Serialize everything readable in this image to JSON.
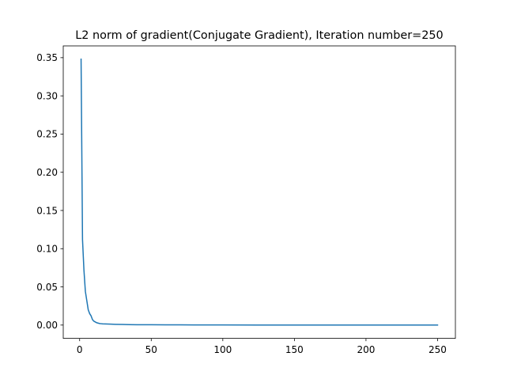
{
  "chart_data": {
    "type": "line",
    "title": "L2 norm of gradient(Conjugate Gradient), Iteration number=250",
    "xlabel": "",
    "ylabel": "",
    "xlim": [
      -11.45,
      262.45
    ],
    "ylim": [
      -0.0174,
      0.3654
    ],
    "x_ticks": [
      0,
      50,
      100,
      150,
      200,
      250
    ],
    "x_tick_labels": [
      "0",
      "50",
      "100",
      "150",
      "200",
      "250"
    ],
    "y_ticks": [
      0.0,
      0.05,
      0.1,
      0.15,
      0.2,
      0.25,
      0.3,
      0.35
    ],
    "y_tick_labels": [
      "0.00",
      "0.05",
      "0.10",
      "0.15",
      "0.20",
      "0.25",
      "0.30",
      "0.35"
    ],
    "grid": false,
    "legend": "none",
    "series": [
      {
        "color": "#1f77b4",
        "x": [
          1,
          2,
          3,
          4,
          5,
          6,
          7,
          8,
          9,
          10,
          11,
          12,
          13,
          14,
          15,
          16,
          18,
          20,
          22,
          25,
          30,
          35,
          40,
          45,
          50,
          60,
          70,
          80,
          90,
          100,
          125,
          150,
          175,
          200,
          225,
          250
        ],
        "y": [
          0.348,
          0.112,
          0.072,
          0.044,
          0.032,
          0.02,
          0.015,
          0.012,
          0.007,
          0.005,
          0.004,
          0.003,
          0.0025,
          0.002,
          0.0018,
          0.0016,
          0.0015,
          0.0014,
          0.0012,
          0.001,
          0.0008,
          0.0006,
          0.0005,
          0.0004,
          0.0004,
          0.0003,
          0.0003,
          0.0002,
          0.0002,
          0.0002,
          0.0001,
          0.0001,
          0.0001,
          0.0001,
          0.0001,
          0.0001
        ]
      }
    ]
  }
}
